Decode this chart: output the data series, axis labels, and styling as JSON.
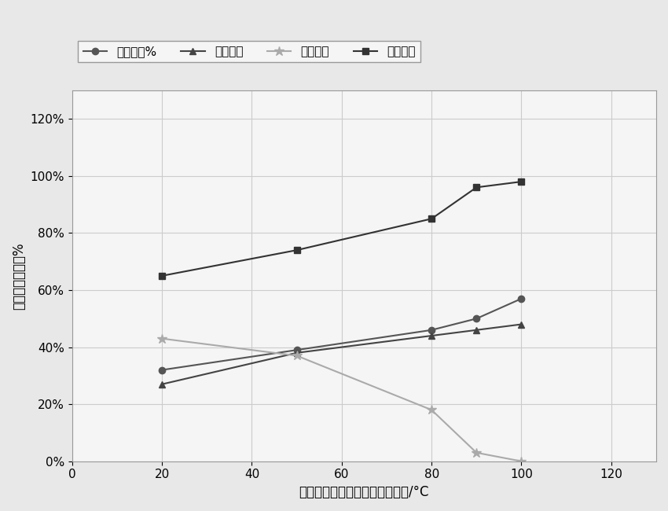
{
  "x": [
    20,
    50,
    80,
    90,
    100
  ],
  "series": [
    {
      "label": "镍浸出率%",
      "y": [
        32,
        39,
        46,
        50,
        57
      ],
      "color": "#555555",
      "marker": "o",
      "markersize": 6,
      "linewidth": 1.5,
      "linestyle": "-",
      "markerfacecolor": "#555555"
    },
    {
      "label": "鉤浸出率",
      "y": [
        27,
        38,
        44,
        46,
        48
      ],
      "color": "#444444",
      "marker": "^",
      "markersize": 6,
      "linewidth": 1.5,
      "linestyle": "-",
      "markerfacecolor": "#444444"
    },
    {
      "label": "锡浸出率",
      "y": [
        43,
        37,
        18,
        3,
        0
      ],
      "color": "#aaaaaa",
      "marker": "*",
      "markersize": 9,
      "linewidth": 1.5,
      "linestyle": "-",
      "markerfacecolor": "#aaaaaa"
    },
    {
      "label": "锂浸出率",
      "y": [
        65,
        74,
        85,
        96,
        98
      ],
      "color": "#333333",
      "marker": "s",
      "markersize": 6,
      "linewidth": 1.5,
      "linestyle": "-",
      "markerfacecolor": "#333333"
    }
  ],
  "xlabel": "不同温度下镍鉤锡锂的浸出效果/°C",
  "ylabel": "镍鉤锡锂浸出率%",
  "xlim": [
    0,
    130
  ],
  "ylim": [
    0,
    130
  ],
  "xticks": [
    0,
    20,
    40,
    60,
    80,
    100,
    120
  ],
  "yticks": [
    0,
    20,
    40,
    60,
    80,
    100,
    120
  ],
  "ytick_labels": [
    "0%",
    "20%",
    "40%",
    "60%",
    "80%",
    "100%",
    "120%"
  ],
  "background_color": "#f5f5f5",
  "plot_bg_color": "#f5f5f5",
  "grid_color": "#cccccc",
  "legend_ncol": 4,
  "figsize": [
    8.5,
    6.5
  ],
  "dpi": 100,
  "outer_bg": "#e8e8e8"
}
